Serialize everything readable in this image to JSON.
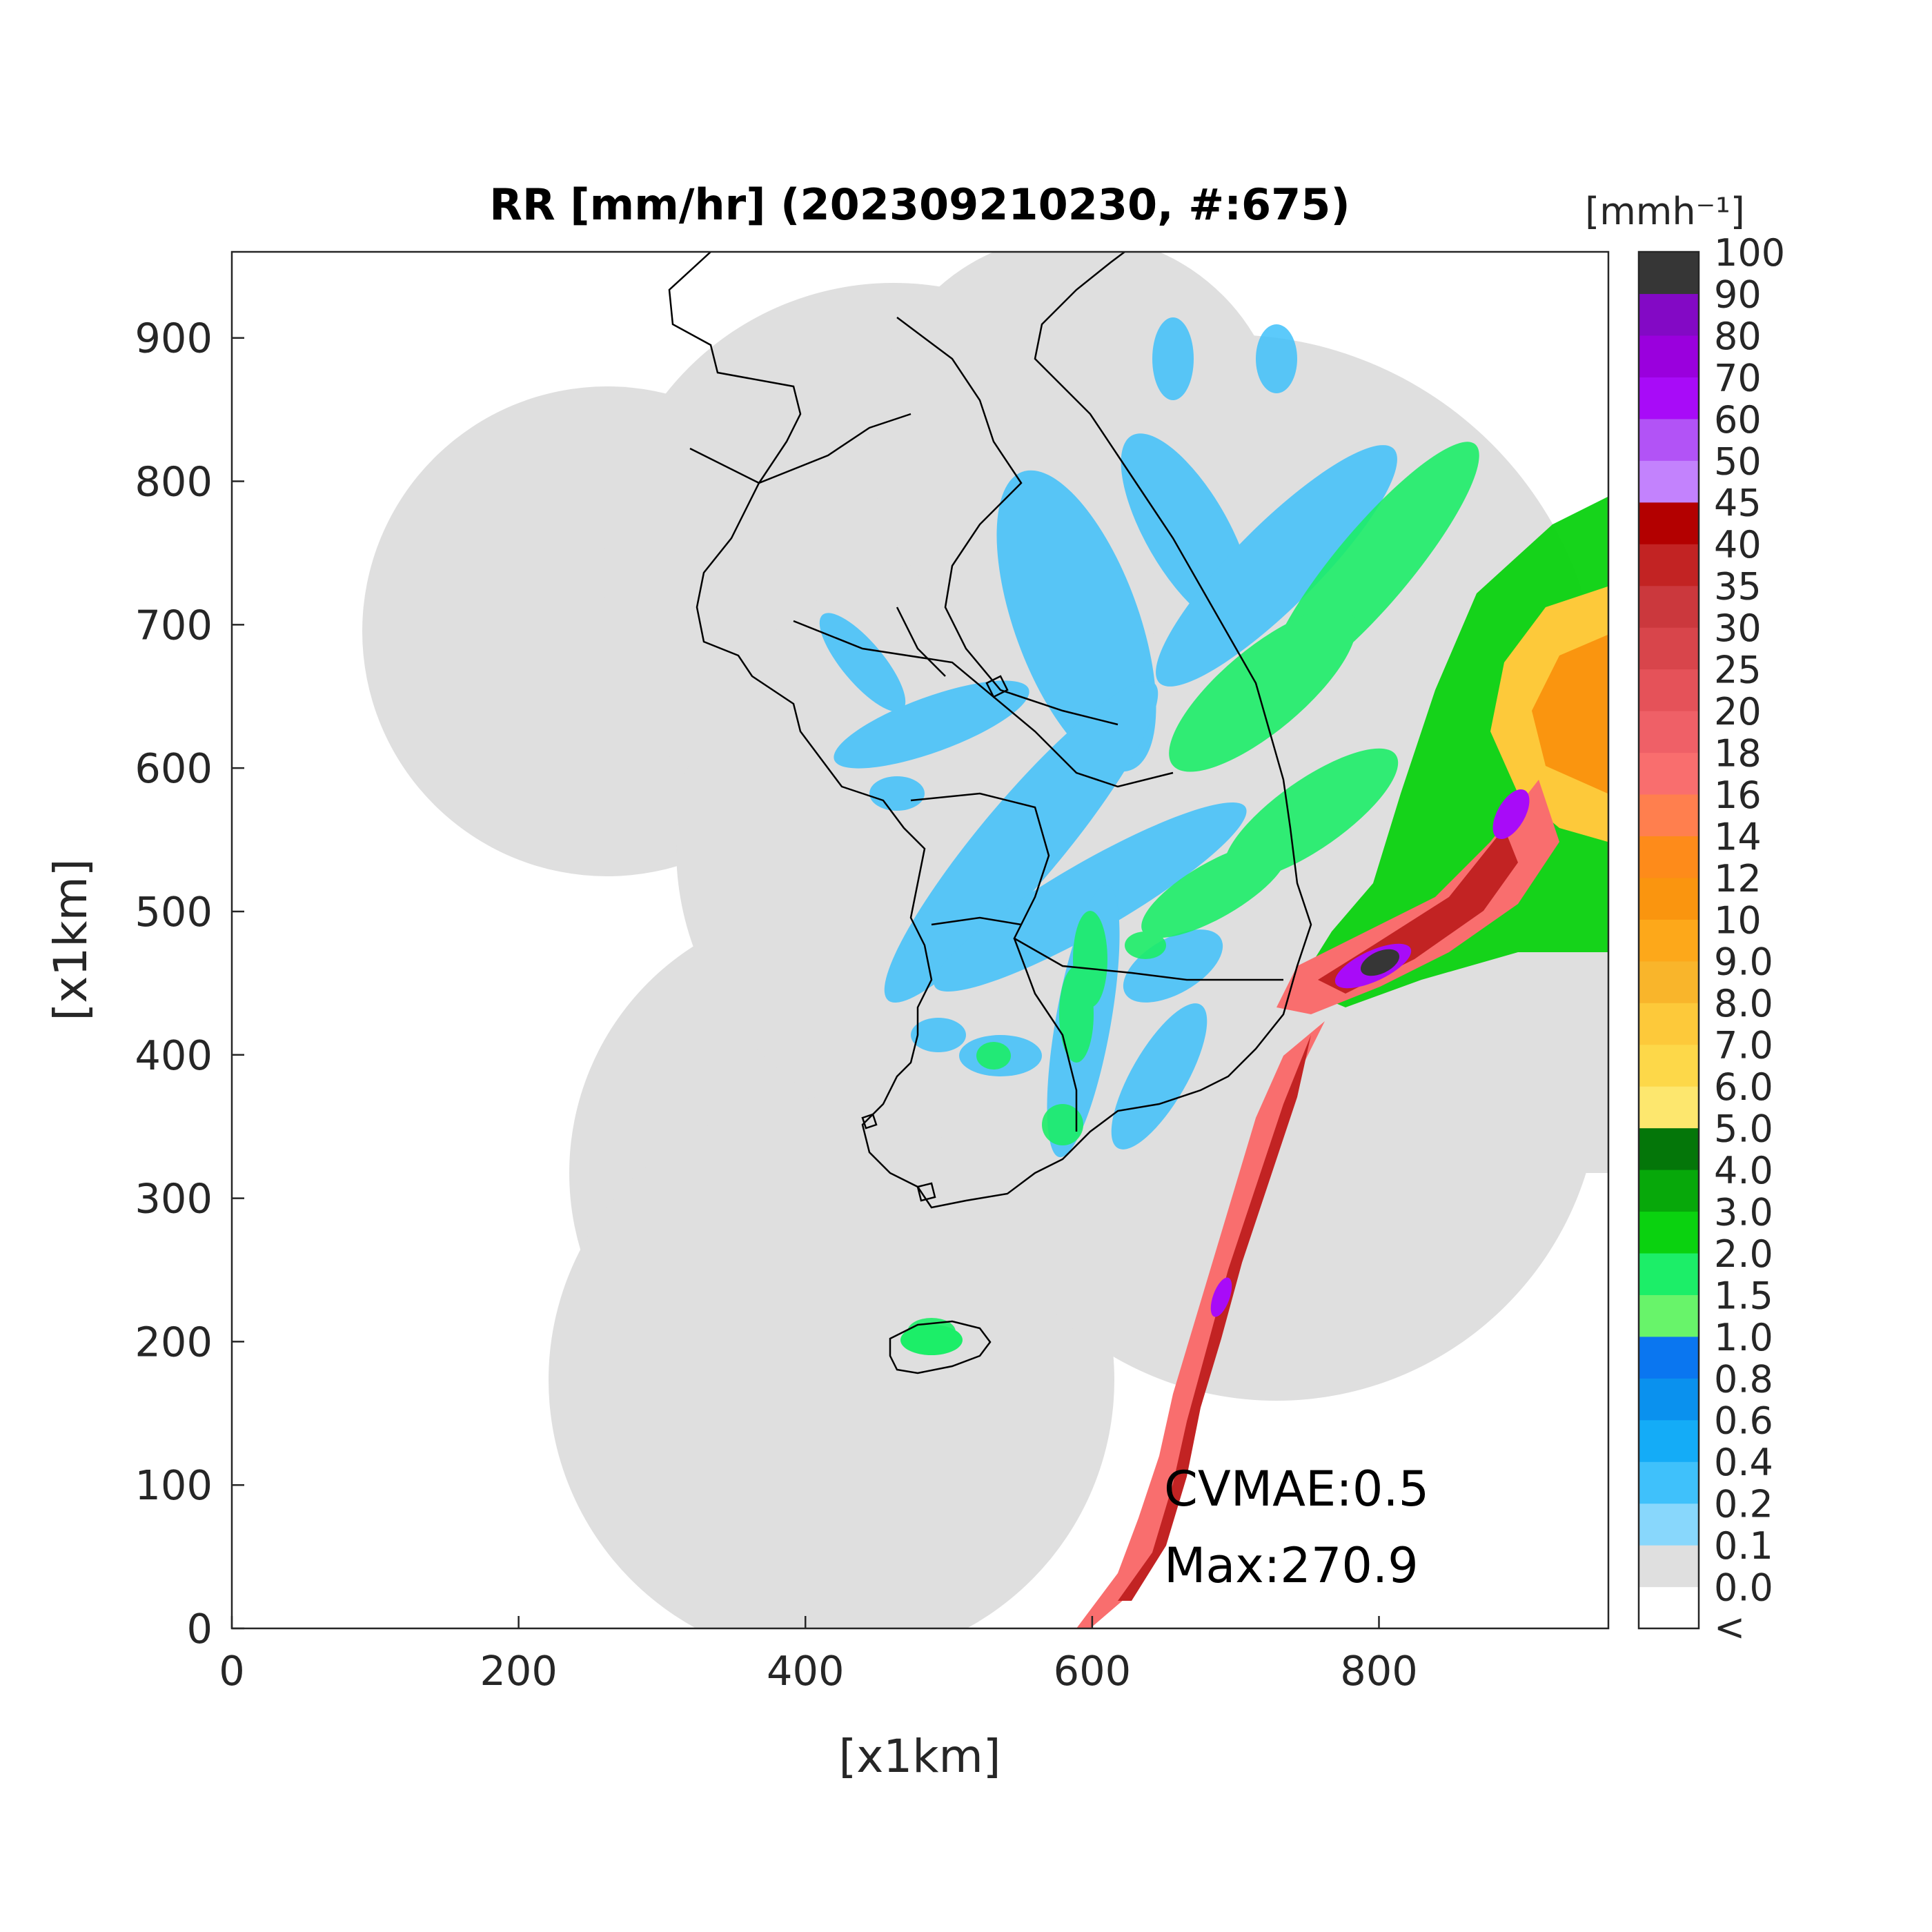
{
  "title": "RR [mm/hr] (202309210230, #:675)",
  "colorbar": {
    "unit_label": "[mmh⁻¹]",
    "levels": [
      "<",
      "0.0",
      "0.1",
      "0.2",
      "0.4",
      "0.6",
      "0.8",
      "1.0",
      "1.5",
      "2.0",
      "3.0",
      "4.0",
      "5.0",
      "6.0",
      "7.0",
      "8.0",
      "9.0",
      "10",
      "12",
      "14",
      "16",
      "18",
      "20",
      "25",
      "30",
      "35",
      "40",
      "45",
      "50",
      "60",
      "70",
      "80",
      "90",
      "100"
    ],
    "colors": [
      "#ffffff",
      "#dfdfdf",
      "#88d7fc",
      "#3fc1fb",
      "#14acf7",
      "#0a91ee",
      "#0a76f0",
      "#68f46a",
      "#1cee68",
      "#0ad20f",
      "#07a80a",
      "#047609",
      "#fde76e",
      "#fdd849",
      "#fdc93a",
      "#f9b52b",
      "#fda81a",
      "#fa950f",
      "#fe8b1a",
      "#ff7f4e",
      "#f96e6e",
      "#ef6067",
      "#e55259",
      "#d8454b",
      "#cb383d",
      "#c22323",
      "#b30000",
      "#c382fd",
      "#b253f6",
      "#a80bf8",
      "#9a00dd",
      "#8309c5",
      "#363636"
    ]
  },
  "axes": {
    "xlabel": "[x1km]",
    "ylabel": "[x1km]",
    "xlim": [
      0,
      960
    ],
    "ylim": [
      0,
      960
    ],
    "xticks": [
      "0",
      "200",
      "400",
      "600",
      "800"
    ],
    "yticks": [
      "0",
      "100",
      "200",
      "300",
      "400",
      "500",
      "600",
      "700",
      "800",
      "900"
    ]
  },
  "annotations": {
    "cvmae": "CVMAE:0.5",
    "max": "Max:270.9"
  }
}
